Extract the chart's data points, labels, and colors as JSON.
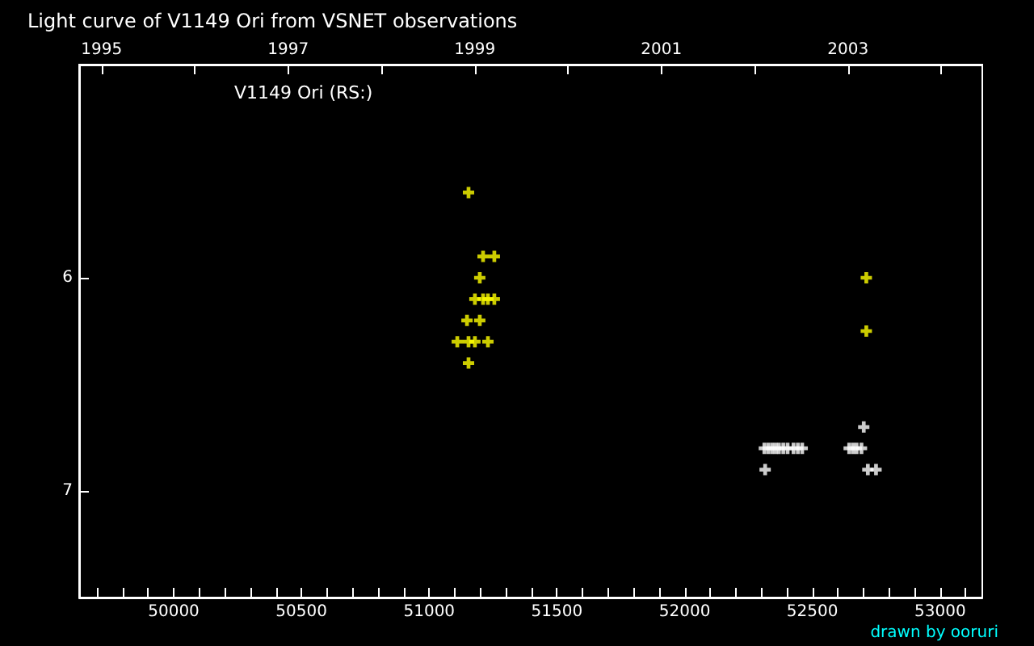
{
  "chart_data": {
    "type": "scatter",
    "title": "Light curve of V1149 Ori from VSNET observations",
    "annotations": [
      "V1149 Ori (RS:)",
      "drawn by ooruri"
    ],
    "marker": "cross",
    "grid": false,
    "xlim": [
      49630,
      53165
    ],
    "ylim": [
      7.5,
      5.0
    ],
    "yticks": [
      6,
      7
    ],
    "xticks": [
      {
        "value": 49700,
        "label": null
      },
      {
        "value": 49800,
        "label": null
      },
      {
        "value": 49900,
        "label": null
      },
      50000,
      {
        "value": 50100,
        "label": null
      },
      {
        "value": 50200,
        "label": null
      },
      {
        "value": 50300,
        "label": null
      },
      {
        "value": 50400,
        "label": null
      },
      50500,
      {
        "value": 50600,
        "label": null
      },
      {
        "value": 50700,
        "label": null
      },
      {
        "value": 50800,
        "label": null
      },
      {
        "value": 50900,
        "label": null
      },
      51000,
      {
        "value": 51100,
        "label": null
      },
      {
        "value": 51200,
        "label": null
      },
      {
        "value": 51300,
        "label": null
      },
      {
        "value": 51400,
        "label": null
      },
      51500,
      {
        "value": 51600,
        "label": null
      },
      {
        "value": 51700,
        "label": null
      },
      {
        "value": 51800,
        "label": null
      },
      {
        "value": 51900,
        "label": null
      },
      52000,
      {
        "value": 52100,
        "label": null
      },
      {
        "value": 52200,
        "label": null
      },
      {
        "value": 52300,
        "label": null
      },
      {
        "value": 52400,
        "label": null
      },
      52500,
      {
        "value": 52600,
        "label": null
      },
      {
        "value": 52700,
        "label": null
      },
      {
        "value": 52800,
        "label": null
      },
      {
        "value": 52900,
        "label": null
      },
      53000,
      {
        "value": 53100,
        "label": null
      }
    ],
    "x2lim": [
      1994.76,
      2004.44
    ],
    "x2ticks": [
      1995,
      {
        "value": 1996,
        "label": null
      },
      1997,
      {
        "value": 1998,
        "label": null
      },
      1999,
      {
        "value": 2000,
        "label": null
      },
      2001,
      {
        "value": 2002,
        "label": null
      },
      2003,
      {
        "value": 2004,
        "label": null
      }
    ],
    "series": [
      {
        "color": "#ffff00",
        "x": [
          51154,
          51211,
          51255,
          51198,
          51179,
          51211,
          51230,
          51255,
          51148,
          51198,
          51110,
          51154,
          51179,
          51230,
          51154,
          52711,
          52711
        ],
        "values": [
          5.6,
          5.9,
          5.9,
          6.0,
          6.1,
          6.1,
          6.1,
          6.1,
          6.2,
          6.2,
          6.3,
          6.3,
          6.3,
          6.3,
          6.4,
          6.0,
          6.25
        ]
      },
      {
        "color": "#ffffff",
        "x": [
          52701,
          52312,
          52327,
          52342,
          52356,
          52369,
          52386,
          52403,
          52426,
          52443,
          52460,
          52644,
          52659,
          52673,
          52692,
          52315,
          52717,
          52749
        ],
        "values": [
          6.7,
          6.8,
          6.8,
          6.8,
          6.8,
          6.8,
          6.8,
          6.8,
          6.8,
          6.8,
          6.8,
          6.8,
          6.8,
          6.8,
          6.8,
          6.9,
          6.9,
          6.9
        ]
      }
    ]
  }
}
